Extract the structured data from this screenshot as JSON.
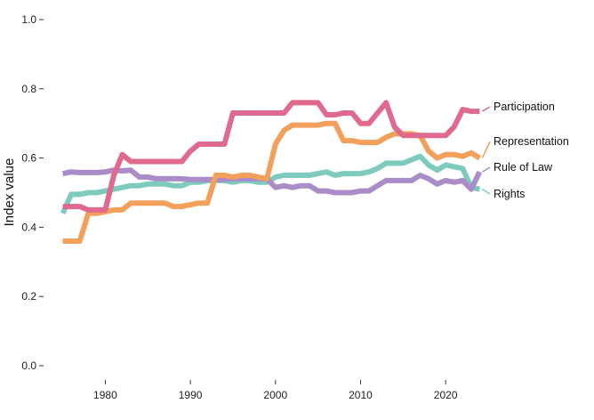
{
  "chart_data": {
    "type": "line",
    "title": "",
    "xlabel": "",
    "ylabel": "Index value",
    "xlim": [
      1974,
      2025
    ],
    "ylim": [
      0,
      1
    ],
    "x_ticks": [
      1980,
      1990,
      2000,
      2010,
      2020
    ],
    "y_ticks": [
      "0.0",
      "0.2",
      "0.4",
      "0.6",
      "0.8",
      "1.0"
    ],
    "y_tick_values": [
      0,
      0.2,
      0.4,
      0.6,
      0.8,
      1.0
    ],
    "grid": false,
    "legend": "direct labels at right end of lines",
    "x": [
      1975,
      1976,
      1977,
      1978,
      1979,
      1980,
      1981,
      1982,
      1983,
      1984,
      1985,
      1986,
      1987,
      1988,
      1989,
      1990,
      1991,
      1992,
      1993,
      1994,
      1995,
      1996,
      1997,
      1998,
      1999,
      2000,
      2001,
      2002,
      2003,
      2004,
      2005,
      2006,
      2007,
      2008,
      2009,
      2010,
      2011,
      2012,
      2013,
      2014,
      2015,
      2016,
      2017,
      2018,
      2019,
      2020,
      2021,
      2022,
      2023,
      2024
    ],
    "series": [
      {
        "name": "Participation",
        "color": "#e0698e",
        "values": [
          0.46,
          0.46,
          0.46,
          0.45,
          0.45,
          0.45,
          0.55,
          0.61,
          0.59,
          0.59,
          0.59,
          0.59,
          0.59,
          0.59,
          0.59,
          0.62,
          0.64,
          0.64,
          0.64,
          0.64,
          0.73,
          0.73,
          0.73,
          0.73,
          0.73,
          0.73,
          0.73,
          0.76,
          0.76,
          0.76,
          0.76,
          0.725,
          0.725,
          0.73,
          0.73,
          0.7,
          0.7,
          0.73,
          0.76,
          0.69,
          0.665,
          0.665,
          0.665,
          0.665,
          0.665,
          0.665,
          0.69,
          0.74,
          0.735,
          0.735
        ]
      },
      {
        "name": "Representation",
        "color": "#f2a05a",
        "values": [
          0.36,
          0.36,
          0.36,
          0.44,
          0.44,
          0.445,
          0.45,
          0.45,
          0.47,
          0.47,
          0.47,
          0.47,
          0.47,
          0.46,
          0.46,
          0.465,
          0.47,
          0.47,
          0.55,
          0.55,
          0.545,
          0.55,
          0.55,
          0.545,
          0.54,
          0.64,
          0.68,
          0.695,
          0.695,
          0.695,
          0.695,
          0.7,
          0.7,
          0.65,
          0.65,
          0.645,
          0.645,
          0.645,
          0.66,
          0.67,
          0.67,
          0.67,
          0.665,
          0.62,
          0.6,
          0.61,
          0.61,
          0.605,
          0.615,
          0.6
        ]
      },
      {
        "name": "Rule of Law",
        "color": "#a98cc8",
        "values": [
          0.555,
          0.56,
          0.558,
          0.558,
          0.558,
          0.56,
          0.565,
          0.563,
          0.565,
          0.545,
          0.545,
          0.54,
          0.54,
          0.54,
          0.54,
          0.538,
          0.538,
          0.538,
          0.538,
          0.538,
          0.54,
          0.54,
          0.54,
          0.54,
          0.54,
          0.515,
          0.52,
          0.515,
          0.52,
          0.52,
          0.505,
          0.505,
          0.5,
          0.5,
          0.5,
          0.505,
          0.505,
          0.52,
          0.535,
          0.535,
          0.535,
          0.535,
          0.55,
          0.54,
          0.525,
          0.535,
          0.53,
          0.535,
          0.51,
          0.56
        ]
      },
      {
        "name": "Rights",
        "color": "#7dcbbe",
        "values": [
          0.44,
          0.495,
          0.495,
          0.5,
          0.5,
          0.505,
          0.51,
          0.515,
          0.52,
          0.52,
          0.525,
          0.525,
          0.525,
          0.52,
          0.52,
          0.53,
          0.53,
          0.535,
          0.535,
          0.535,
          0.53,
          0.535,
          0.535,
          0.53,
          0.53,
          0.545,
          0.55,
          0.55,
          0.55,
          0.55,
          0.555,
          0.56,
          0.55,
          0.555,
          0.555,
          0.555,
          0.56,
          0.57,
          0.585,
          0.585,
          0.585,
          0.595,
          0.605,
          0.58,
          0.565,
          0.58,
          0.575,
          0.57,
          0.515,
          0.51
        ]
      }
    ]
  }
}
